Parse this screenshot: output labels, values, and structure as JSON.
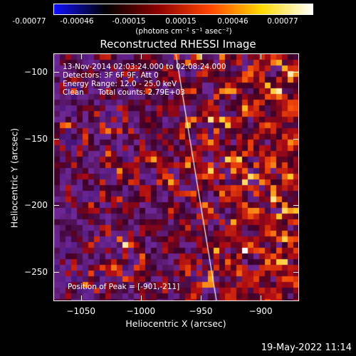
{
  "colorbar": {
    "labels": [
      "-0.00077",
      "-0.00046",
      "-0.00015",
      "0.00015",
      "0.00046",
      "0.00077"
    ],
    "units": "(photons cm⁻² s⁻¹ asec⁻²)",
    "colors": [
      "#1010ff",
      "#000000",
      "#8b0000",
      "#ff4500",
      "#ffd700",
      "#ffffff"
    ]
  },
  "title": "Reconstructed RHESSI Image",
  "info": {
    "time_range": "13-Nov-2014 02:03:24.000 to 02:08:24.000",
    "detectors": "Detectors: 3F 6F 9F, Att 0",
    "energy": "Energy Range: 12.0 - 25.0 keV",
    "clean": "Clean      Total counts: 2.79E+03",
    "peak": "Position of Peak = [-901,-211]"
  },
  "axes": {
    "xlabel": "Heliocentric X (arcsec)",
    "ylabel": "Heliocentric Y (arcsec)",
    "xticks": [
      "-1050",
      "-1000",
      "-950",
      "-900"
    ],
    "yticks": [
      "-100",
      "-150",
      "-200",
      "-250"
    ],
    "xlim": [
      -1073,
      -868
    ],
    "ylim": [
      -272,
      -86
    ]
  },
  "footer": {
    "timestamp": "19-May-2022 11:14"
  },
  "colors": {
    "background": "#000000",
    "limb_line": "#ffffff"
  }
}
